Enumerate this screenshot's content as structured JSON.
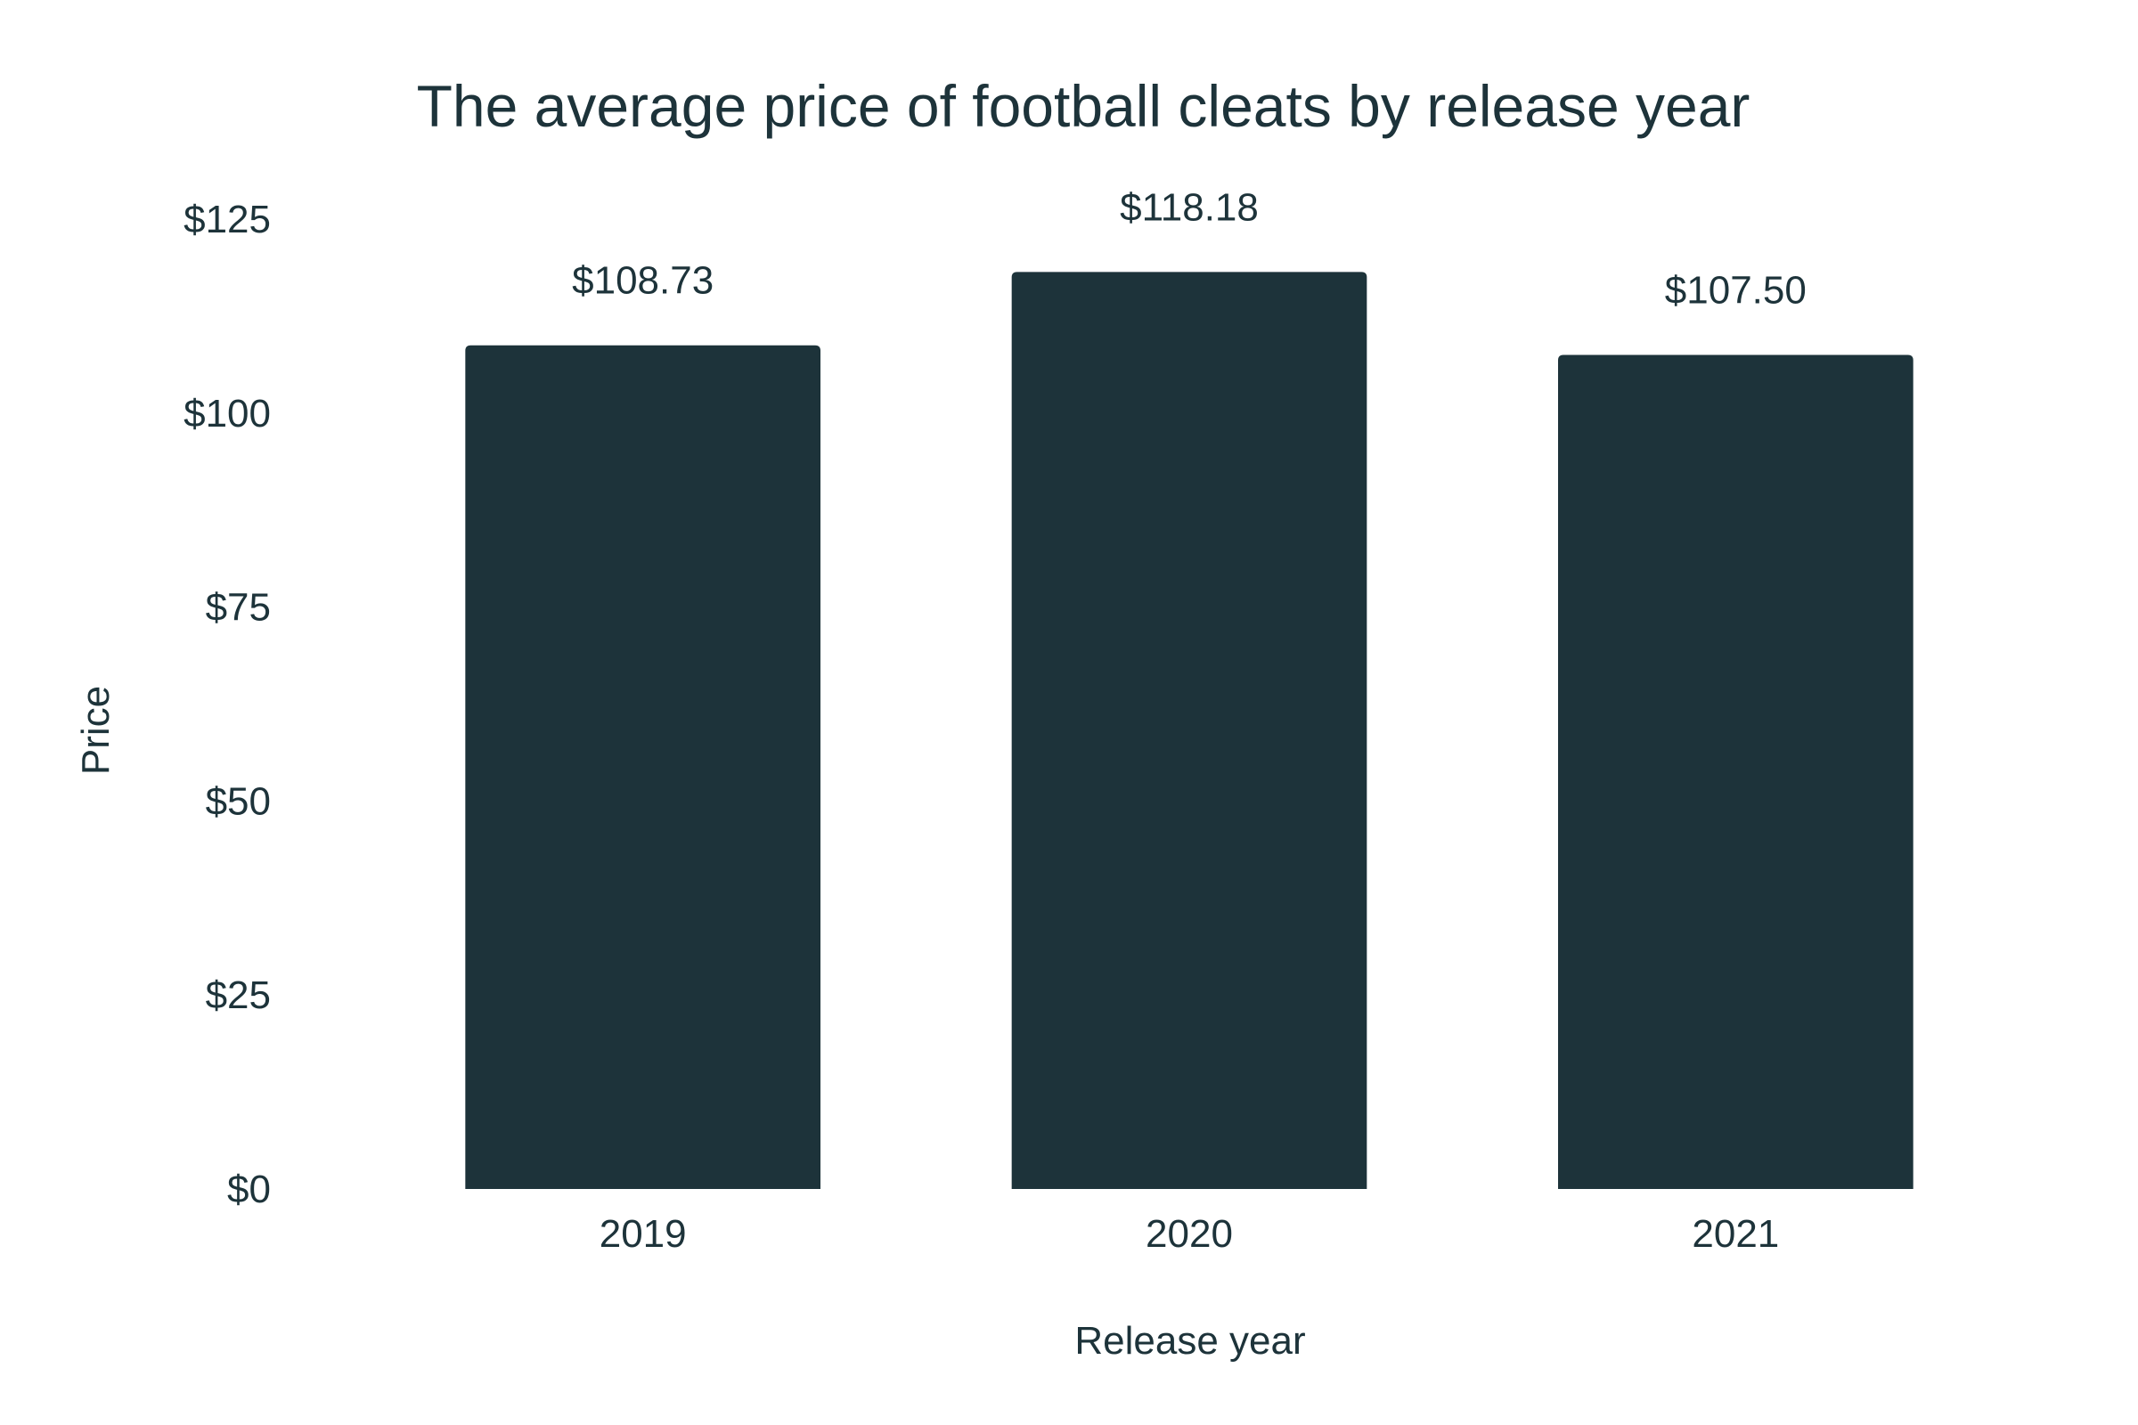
{
  "chart_data": {
    "type": "bar",
    "title": "The average price of football cleats by release year",
    "xlabel": "Release year",
    "ylabel": "Price",
    "categories": [
      "2019",
      "2020",
      "2021"
    ],
    "values": [
      108.73,
      118.18,
      107.5
    ],
    "data_labels": [
      "$108.73",
      "$118.18",
      "$107.50"
    ],
    "ylim": [
      0,
      125
    ],
    "yticks": [
      0,
      25,
      50,
      75,
      100,
      125
    ],
    "ytick_labels": [
      "$0",
      "$25",
      "$50",
      "$75",
      "$100",
      "$125"
    ],
    "grid": false,
    "legend": "none",
    "bar_color": "#1d333a",
    "text_color": "#1d333a"
  }
}
